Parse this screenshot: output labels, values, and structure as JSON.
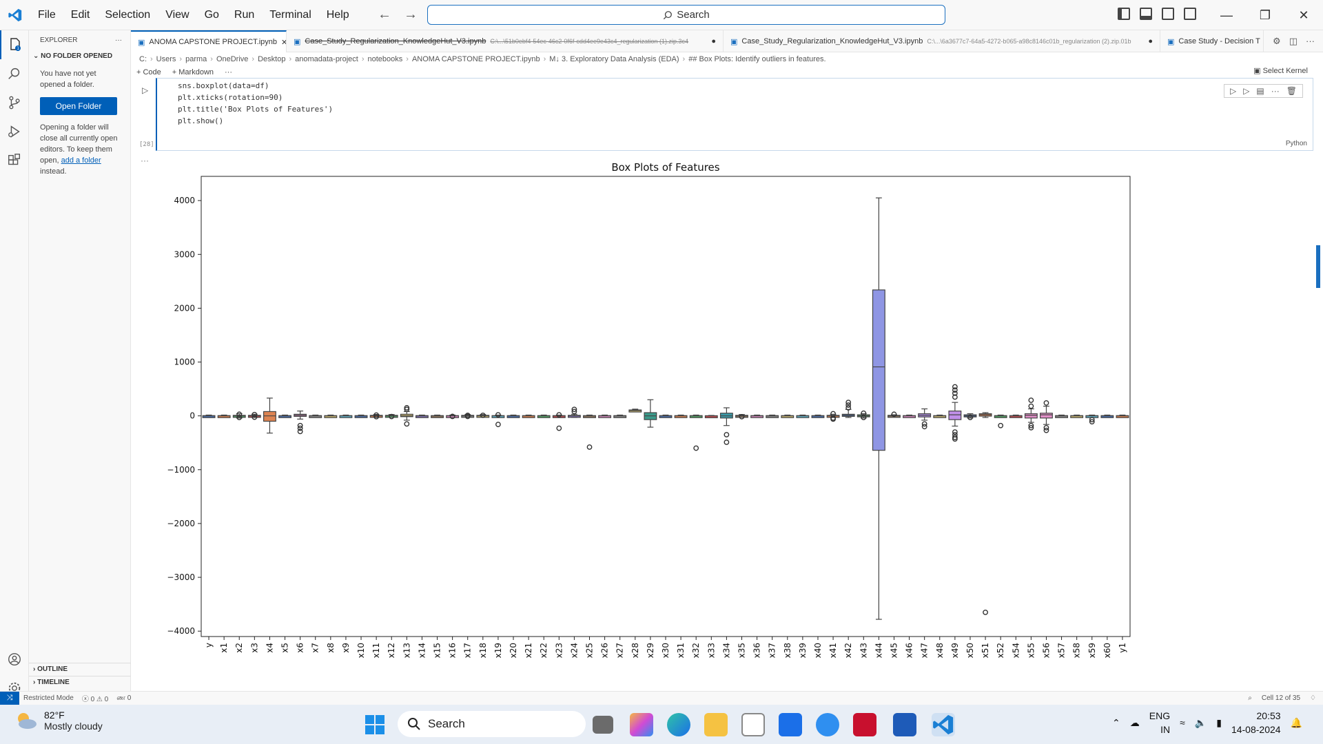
{
  "menu": [
    "File",
    "Edit",
    "Selection",
    "View",
    "Go",
    "Run",
    "Terminal",
    "Help"
  ],
  "search": {
    "label": "Search"
  },
  "sidebar": {
    "title": "EXPLORER",
    "section": "NO FOLDER OPENED",
    "msg1": "You have not yet opened a folder.",
    "open_button": "Open Folder",
    "msg2_start": "Opening a folder will close all currently open editors. To keep them open,",
    "msg2_link": "add a folder",
    "msg2_end": "instead.",
    "outline": "OUTLINE",
    "timeline": "TIMELINE",
    "badge": "1"
  },
  "tabs": [
    {
      "label": "ANOMA CAPSTONE PROJECT.ipynb",
      "path": "",
      "active": true
    },
    {
      "label": "Case_Study_Regularization_KnowledgeHut_V3.ipynb",
      "path": "C:\\...\\51b0ebf4-54ec-46c2-0f6f-cdd4ee9e43c4_regularization (1).zip.3c4",
      "active": false
    },
    {
      "label": "Case_Study_Regularization_KnowledgeHut_V3.ipynb",
      "path": "C:\\...\\6a3677c7-64a5-4272-b065-a98c8146c01b_regularization (2).zip.01b",
      "active": false
    },
    {
      "label": "Case Study - Decision T",
      "path": "",
      "active": false
    }
  ],
  "breadcrumb": [
    "C:",
    "Users",
    "parma",
    "OneDrive",
    "Desktop",
    "anomadata-project",
    "notebooks",
    "ANOMA CAPSTONE PROJECT.ipynb",
    "M↓ 3. Exploratory Data Analysis (EDA)",
    "## Box Plots: Identify outliers in features."
  ],
  "toolbar": {
    "code": "+ Code",
    "markdown": "+ Markdown",
    "more": "···",
    "kernel": "Select Kernel"
  },
  "cell": {
    "lines": [
      "sns.boxplot(data=df)",
      "plt.xticks(rotation=90)",
      "plt.title('Box Plots of Features')",
      "plt.show()"
    ],
    "exec_count": "[28]",
    "language": "Python"
  },
  "chart_data": {
    "type": "boxplot",
    "title": "Box Plots of Features",
    "xlabel": "",
    "ylabel": "",
    "ylim": [
      -4100,
      4450
    ],
    "yticks": [
      -4000,
      -3000,
      -2000,
      -1000,
      0,
      1000,
      2000,
      3000,
      4000
    ],
    "grid": false,
    "categories": [
      "y",
      "x1",
      "x2",
      "x3",
      "x4",
      "x5",
      "x6",
      "x7",
      "x8",
      "x9",
      "x10",
      "x11",
      "x12",
      "x13",
      "x14",
      "x15",
      "x16",
      "x17",
      "x18",
      "x19",
      "x20",
      "x21",
      "x22",
      "x23",
      "x24",
      "x25",
      "x26",
      "x27",
      "x28",
      "x29",
      "x30",
      "x31",
      "x32",
      "x33",
      "x34",
      "x35",
      "x36",
      "x37",
      "x38",
      "x39",
      "x40",
      "x41",
      "x42",
      "x43",
      "x44",
      "x45",
      "x46",
      "x47",
      "x48",
      "x49",
      "x50",
      "x51",
      "x52",
      "x54",
      "x55",
      "x56",
      "x57",
      "x58",
      "x59",
      "x60",
      "y1"
    ],
    "boxes": [
      {
        "q1": -5,
        "med": 0,
        "q3": 5,
        "lo": -15,
        "hi": 15,
        "out": [],
        "color": "#4c72b0"
      },
      {
        "q1": -5,
        "med": 0,
        "q3": 5,
        "lo": -15,
        "hi": 15,
        "out": [],
        "color": "#dd8452"
      },
      {
        "q1": -10,
        "med": 0,
        "q3": 10,
        "lo": -40,
        "hi": 40,
        "out": [
          -30,
          30
        ],
        "color": "#55a868"
      },
      {
        "q1": -10,
        "med": 0,
        "q3": 10,
        "lo": -30,
        "hi": 30,
        "out": [
          -25,
          25
        ],
        "color": "#c44e52"
      },
      {
        "q1": -100,
        "med": 0,
        "q3": 80,
        "lo": -320,
        "hi": 330,
        "out": [],
        "color": "#dd8452"
      },
      {
        "q1": -5,
        "med": 0,
        "q3": 5,
        "lo": -15,
        "hi": 15,
        "out": [],
        "color": "#4c72b0"
      },
      {
        "q1": -10,
        "med": 10,
        "q3": 30,
        "lo": -60,
        "hi": 90,
        "out": [
          -180,
          -230,
          -290
        ],
        "color": "#da8bc3"
      },
      {
        "q1": -5,
        "med": 0,
        "q3": 5,
        "lo": -15,
        "hi": 15,
        "out": [],
        "color": "#8c8c8c"
      },
      {
        "q1": -5,
        "med": 0,
        "q3": 5,
        "lo": -15,
        "hi": 15,
        "out": [],
        "color": "#ccb974"
      },
      {
        "q1": -5,
        "med": 0,
        "q3": 5,
        "lo": -15,
        "hi": 15,
        "out": [],
        "color": "#64b5cd"
      },
      {
        "q1": -5,
        "med": 0,
        "q3": 5,
        "lo": -15,
        "hi": 15,
        "out": [],
        "color": "#4c72b0"
      },
      {
        "q1": -10,
        "med": 0,
        "q3": 10,
        "lo": -25,
        "hi": 25,
        "out": [
          -15,
          15
        ],
        "color": "#dd8452"
      },
      {
        "q1": -10,
        "med": 0,
        "q3": 10,
        "lo": -25,
        "hi": 25,
        "out": [
          -12
        ],
        "color": "#55a868"
      },
      {
        "q1": -15,
        "med": 0,
        "q3": 30,
        "lo": -80,
        "hi": 80,
        "out": [
          -150,
          120,
          150
        ],
        "color": "#ccb974"
      },
      {
        "q1": -5,
        "med": 0,
        "q3": 5,
        "lo": -15,
        "hi": 15,
        "out": [],
        "color": "#8172b3"
      },
      {
        "q1": -5,
        "med": 0,
        "q3": 5,
        "lo": -15,
        "hi": 15,
        "out": [],
        "color": "#937860"
      },
      {
        "q1": -5,
        "med": 0,
        "q3": 5,
        "lo": -15,
        "hi": 15,
        "out": [
          -10
        ],
        "color": "#da8bc3"
      },
      {
        "q1": -10,
        "med": 0,
        "q3": 10,
        "lo": -25,
        "hi": 25,
        "out": [
          -10,
          10
        ],
        "color": "#8c8c8c"
      },
      {
        "q1": -10,
        "med": 0,
        "q3": 10,
        "lo": -25,
        "hi": 25,
        "out": [
          10
        ],
        "color": "#ccb974"
      },
      {
        "q1": -5,
        "med": 0,
        "q3": 5,
        "lo": -15,
        "hi": 15,
        "out": [
          -160,
          20
        ],
        "color": "#64b5cd"
      },
      {
        "q1": -5,
        "med": 0,
        "q3": 5,
        "lo": -15,
        "hi": 15,
        "out": [],
        "color": "#4c72b0"
      },
      {
        "q1": -5,
        "med": 0,
        "q3": 5,
        "lo": -15,
        "hi": 15,
        "out": [],
        "color": "#dd8452"
      },
      {
        "q1": -5,
        "med": 0,
        "q3": 5,
        "lo": -15,
        "hi": 15,
        "out": [],
        "color": "#55a868"
      },
      {
        "q1": -5,
        "med": 0,
        "q3": 5,
        "lo": -15,
        "hi": 15,
        "out": [
          -230,
          20
        ],
        "color": "#c44e52"
      },
      {
        "q1": -10,
        "med": 0,
        "q3": 10,
        "lo": -30,
        "hi": 30,
        "out": [
          80,
          120
        ],
        "color": "#8172b3"
      },
      {
        "q1": -5,
        "med": 0,
        "q3": 5,
        "lo": -15,
        "hi": 15,
        "out": [
          -580
        ],
        "color": "#937860"
      },
      {
        "q1": -5,
        "med": 0,
        "q3": 5,
        "lo": -15,
        "hi": 15,
        "out": [],
        "color": "#da8bc3"
      },
      {
        "q1": -5,
        "med": 0,
        "q3": 5,
        "lo": -15,
        "hi": 15,
        "out": [],
        "color": "#8c8c8c"
      },
      {
        "q1": 95,
        "med": 100,
        "q3": 110,
        "lo": 80,
        "hi": 125,
        "out": [],
        "color": "#ccb974"
      },
      {
        "q1": -70,
        "med": 0,
        "q3": 60,
        "lo": -210,
        "hi": 300,
        "out": [],
        "color": "#3a9a8a"
      },
      {
        "q1": -5,
        "med": 0,
        "q3": 5,
        "lo": -15,
        "hi": 15,
        "out": [],
        "color": "#4c72b0"
      },
      {
        "q1": -5,
        "med": 0,
        "q3": 5,
        "lo": -15,
        "hi": 15,
        "out": [],
        "color": "#dd8452"
      },
      {
        "q1": -5,
        "med": 0,
        "q3": 5,
        "lo": -15,
        "hi": 15,
        "out": [
          -600
        ],
        "color": "#55a868"
      },
      {
        "q1": -3,
        "med": 0,
        "q3": 3,
        "lo": -8,
        "hi": 8,
        "out": [],
        "color": "#c44e52"
      },
      {
        "q1": -40,
        "med": 0,
        "q3": 50,
        "lo": -180,
        "hi": 150,
        "out": [
          -350,
          -490
        ],
        "color": "#3a9aa8"
      },
      {
        "q1": -10,
        "med": 0,
        "q3": 10,
        "lo": -25,
        "hi": 25,
        "out": [
          -15
        ],
        "color": "#937860"
      },
      {
        "q1": -5,
        "med": 0,
        "q3": 5,
        "lo": -15,
        "hi": 15,
        "out": [],
        "color": "#da8bc3"
      },
      {
        "q1": -5,
        "med": 0,
        "q3": 5,
        "lo": -15,
        "hi": 15,
        "out": [],
        "color": "#8c8c8c"
      },
      {
        "q1": -5,
        "med": 0,
        "q3": 5,
        "lo": -15,
        "hi": 15,
        "out": [],
        "color": "#ccb974"
      },
      {
        "q1": -5,
        "med": 0,
        "q3": 5,
        "lo": -15,
        "hi": 15,
        "out": [],
        "color": "#64b5cd"
      },
      {
        "q1": -5,
        "med": 0,
        "q3": 5,
        "lo": -15,
        "hi": 15,
        "out": [],
        "color": "#4c72b0"
      },
      {
        "q1": -10,
        "med": 0,
        "q3": 10,
        "lo": -30,
        "hi": 30,
        "out": [
          -60,
          -40,
          40
        ],
        "color": "#dd8452"
      },
      {
        "q1": -10,
        "med": 10,
        "q3": 30,
        "lo": -30,
        "hi": 120,
        "out": [
          150,
          200,
          250
        ],
        "color": "#4c72b0"
      },
      {
        "q1": -10,
        "med": 0,
        "q3": 20,
        "lo": -40,
        "hi": 40,
        "out": [
          -30,
          50
        ],
        "color": "#55a868"
      },
      {
        "q1": -640,
        "med": 910,
        "q3": 2340,
        "lo": -3780,
        "hi": 4050,
        "out": [],
        "color": "#8f96e4"
      },
      {
        "q1": -5,
        "med": 0,
        "q3": 10,
        "lo": -20,
        "hi": 20,
        "out": [
          30
        ],
        "color": "#937860"
      },
      {
        "q1": -5,
        "med": 0,
        "q3": 5,
        "lo": -15,
        "hi": 15,
        "out": [],
        "color": "#da8bc3"
      },
      {
        "q1": -20,
        "med": 10,
        "q3": 40,
        "lo": -80,
        "hi": 130,
        "out": [
          -150,
          -200
        ],
        "color": "#b28fe8"
      },
      {
        "q1": -5,
        "med": 0,
        "q3": 5,
        "lo": -15,
        "hi": 15,
        "out": [],
        "color": "#ccb974"
      },
      {
        "q1": -70,
        "med": 20,
        "q3": 90,
        "lo": -190,
        "hi": 250,
        "out": [
          -300,
          -350,
          -400,
          -430,
          350,
          420,
          480,
          540
        ],
        "color": "#c08fe8"
      },
      {
        "q1": -20,
        "med": 0,
        "q3": 20,
        "lo": -40,
        "hi": 40,
        "out": [
          -30
        ],
        "color": "#4c72b0"
      },
      {
        "q1": -5,
        "med": 20,
        "q3": 40,
        "lo": -30,
        "hi": 60,
        "out": [
          -3650
        ],
        "color": "#dd8452"
      },
      {
        "q1": -5,
        "med": 0,
        "q3": 5,
        "lo": -15,
        "hi": 15,
        "out": [
          -180
        ],
        "color": "#55a868"
      },
      {
        "q1": -5,
        "med": 0,
        "q3": 5,
        "lo": -15,
        "hi": 15,
        "out": [],
        "color": "#c44e52"
      },
      {
        "q1": -40,
        "med": 10,
        "q3": 40,
        "lo": -120,
        "hi": 130,
        "out": [
          -180,
          -220,
          180,
          290
        ],
        "color": "#e28fc8"
      },
      {
        "q1": -40,
        "med": 20,
        "q3": 50,
        "lo": -160,
        "hi": 180,
        "out": [
          -220,
          -270,
          240
        ],
        "color": "#e28fc8"
      },
      {
        "q1": -5,
        "med": 0,
        "q3": 5,
        "lo": -15,
        "hi": 15,
        "out": [],
        "color": "#8c8c8c"
      },
      {
        "q1": -5,
        "med": 0,
        "q3": 5,
        "lo": -15,
        "hi": 15,
        "out": [],
        "color": "#ccb974"
      },
      {
        "q1": -5,
        "med": 0,
        "q3": 5,
        "lo": -15,
        "hi": 15,
        "out": [
          -70,
          -110
        ],
        "color": "#64b5cd"
      },
      {
        "q1": -5,
        "med": 0,
        "q3": 5,
        "lo": -15,
        "hi": 15,
        "out": [],
        "color": "#4c72b0"
      },
      {
        "q1": -5,
        "med": 0,
        "q3": 5,
        "lo": -15,
        "hi": 15,
        "out": [],
        "color": "#dd8452"
      }
    ]
  },
  "statusbar": {
    "mode": "Restricted Mode",
    "problems": "ⓧ 0 ⚠ 0",
    "ports": "ண 0",
    "cell": "Cell 12 of 35"
  },
  "taskbar": {
    "temp": "82°F",
    "weather": "Mostly cloudy",
    "search": "Search",
    "lang1": "ENG",
    "lang2": "IN",
    "time": "20:53",
    "date": "14-08-2024"
  },
  "colors": {
    "accent": "#005fb8",
    "titlebar": "#f8f8f8",
    "taskbar": "#e8eef6"
  }
}
